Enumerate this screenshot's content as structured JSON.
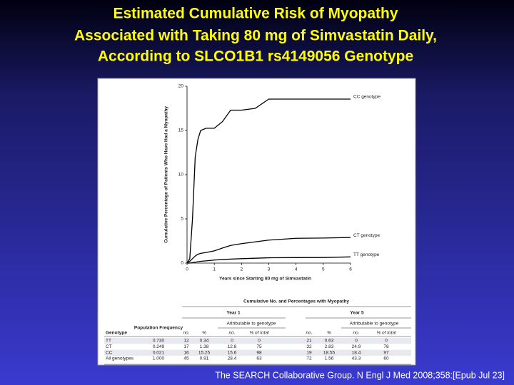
{
  "title": [
    "Estimated  Cumulative  Risk  of  Myopathy",
    "Associated with Taking 80 mg of Simvastatin Daily,",
    "According to SLCO1B1 rs4149056 Genotype"
  ],
  "citation": "The SEARCH Collaborative Group. N Engl J Med 2008;358:[Epub Jul 23]",
  "chart_data": {
    "type": "line",
    "x_label": "Years since Starting 80 mg of Simvastatin",
    "y_label": "Cumulative Percentage of Patients Who Have Had a Myopathy",
    "x": [
      0,
      0.1,
      0.2,
      0.3,
      0.4,
      0.5,
      0.7,
      1,
      1.3,
      1.6,
      2,
      2.5,
      3,
      4,
      5,
      6
    ],
    "series": [
      {
        "name": "CC genotype",
        "color": "#000000",
        "values": [
          0,
          0.5,
          5,
          12,
          14,
          15,
          15.25,
          15.25,
          16,
          17.3,
          17.3,
          17.5,
          18.55,
          18.55,
          18.55,
          18.55
        ]
      },
      {
        "name": "CT genotype",
        "color": "#000000",
        "values": [
          0,
          0.2,
          0.5,
          0.8,
          1,
          1.1,
          1.2,
          1.38,
          1.7,
          2,
          2.2,
          2.4,
          2.6,
          2.8,
          2.83,
          2.9
        ]
      },
      {
        "name": "TT genotype",
        "color": "#000000",
        "values": [
          0,
          0,
          0.05,
          0.1,
          0.15,
          0.2,
          0.25,
          0.34,
          0.4,
          0.45,
          0.5,
          0.55,
          0.6,
          0.62,
          0.63,
          0.7
        ]
      }
    ],
    "xlim": [
      0,
      6
    ],
    "xticks": [
      0,
      1,
      2,
      3,
      4,
      5,
      6
    ],
    "ylim": [
      0,
      20
    ],
    "yticks": [
      0,
      5,
      10,
      15,
      20
    ]
  },
  "table": {
    "caption": "Cumulative No. and Percentages with Myopathy",
    "groups": [
      "Year 1",
      "Year 5"
    ],
    "subgroup": "Attributable to genotype",
    "header": [
      "Genotype",
      "Population Frequency",
      "no.",
      "%",
      "no.",
      "% of total",
      "no.",
      "%",
      "no.",
      "% of total"
    ],
    "rows": [
      [
        "TT",
        "0.730",
        "12",
        "0.34",
        "0",
        "0",
        "21",
        "0.63",
        "0",
        "0"
      ],
      [
        "CT",
        "0.249",
        "17",
        "1.38",
        "12.8",
        "75",
        "32",
        "2.83",
        "24.9",
        "78"
      ],
      [
        "CC",
        "0.021",
        "16",
        "15.25",
        "15.6",
        "98",
        "19",
        "18.55",
        "18.4",
        "97"
      ],
      [
        "All genotypes",
        "1.000",
        "45",
        "0.91",
        "28.4",
        "63",
        "72",
        "1.56",
        "43.3",
        "60"
      ]
    ]
  }
}
